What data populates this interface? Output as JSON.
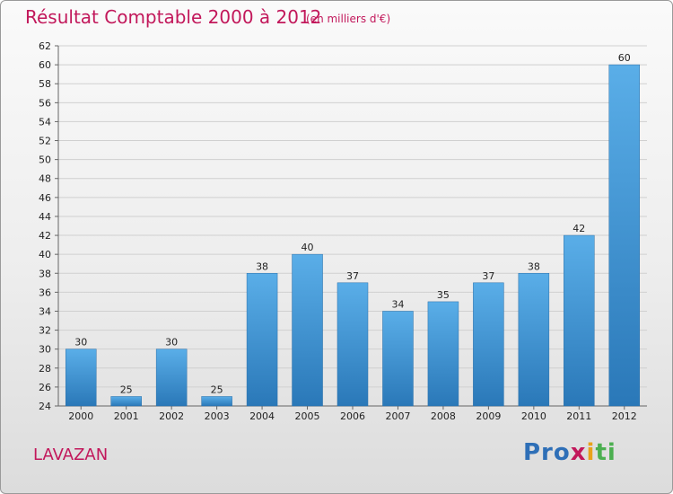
{
  "header": {
    "title": "Résultat Comptable 2000 à 2012",
    "subtitle": "(en milliers d'€)"
  },
  "footer": {
    "town": "LAVAZAN",
    "logo_text": "Proxiti"
  },
  "colors": {
    "title": "#c2185b",
    "bar_light": "#5aaee8",
    "bar_dark": "#2a78b8"
  },
  "chart_data": {
    "type": "bar",
    "title": "Résultat Comptable 2000 à 2012",
    "subtitle": "(en milliers d'€)",
    "xlabel": "",
    "ylabel": "",
    "categories": [
      "2000",
      "2001",
      "2002",
      "2003",
      "2004",
      "2005",
      "2006",
      "2007",
      "2008",
      "2009",
      "2010",
      "2011",
      "2012"
    ],
    "values": [
      30,
      25,
      30,
      25,
      38,
      40,
      37,
      34,
      35,
      37,
      38,
      42,
      60
    ],
    "data_labels": [
      "30",
      "25",
      "30",
      "25",
      "38",
      "40",
      "37",
      "34",
      "35",
      "37",
      "38",
      "42",
      "60"
    ],
    "ylim": [
      24,
      62
    ],
    "yticks": [
      24,
      26,
      28,
      30,
      32,
      34,
      36,
      38,
      40,
      42,
      44,
      46,
      48,
      50,
      52,
      54,
      56,
      58,
      60,
      62
    ],
    "grid": true,
    "legend": "none"
  }
}
